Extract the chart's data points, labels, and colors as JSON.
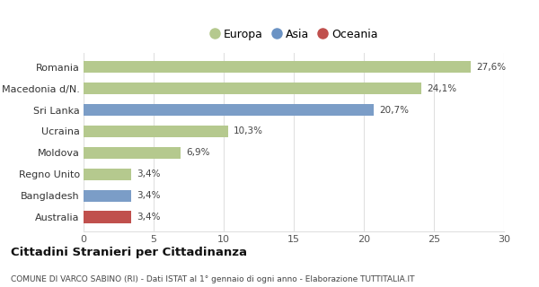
{
  "categories": [
    "Romania",
    "Macedonia d/N.",
    "Sri Lanka",
    "Ucraina",
    "Moldova",
    "Regno Unito",
    "Bangladesh",
    "Australia"
  ],
  "values": [
    27.6,
    24.1,
    20.7,
    10.3,
    6.9,
    3.4,
    3.4,
    3.4
  ],
  "labels": [
    "27,6%",
    "24,1%",
    "20,7%",
    "10,3%",
    "6,9%",
    "3,4%",
    "3,4%",
    "3,4%"
  ],
  "colors": [
    "#b5c98e",
    "#b5c98e",
    "#7b9dc7",
    "#b5c98e",
    "#b5c98e",
    "#b5c98e",
    "#7b9dc7",
    "#c0504d"
  ],
  "legend": [
    {
      "label": "Europa",
      "color": "#b5c98e"
    },
    {
      "label": "Asia",
      "color": "#6b93c4"
    },
    {
      "label": "Oceania",
      "color": "#c0504d"
    }
  ],
  "xlim": [
    0,
    30
  ],
  "xticks": [
    0,
    5,
    10,
    15,
    20,
    25,
    30
  ],
  "title": "Cittadini Stranieri per Cittadinanza",
  "subtitle": "COMUNE DI VARCO SABINO (RI) - Dati ISTAT al 1° gennaio di ogni anno - Elaborazione TUTTITALIA.IT",
  "background_color": "#ffffff",
  "grid_color": "#e0e0e0"
}
